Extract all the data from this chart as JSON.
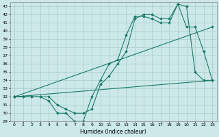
{
  "xlabel": "Humidex (Indice chaleur)",
  "background_color": "#cce8e8",
  "grid_color": "#aacccc",
  "line_color": "#1a7a6a",
  "xlim": [
    -0.5,
    23.5
  ],
  "ylim": [
    29,
    43.5
  ],
  "xticks": [
    0,
    1,
    2,
    3,
    4,
    5,
    6,
    7,
    8,
    9,
    10,
    11,
    12,
    13,
    14,
    15,
    16,
    17,
    18,
    19,
    20,
    21,
    22,
    23
  ],
  "yticks": [
    29,
    30,
    31,
    32,
    33,
    34,
    35,
    36,
    37,
    38,
    39,
    40,
    41,
    42,
    43
  ],
  "series": [
    {
      "x": [
        0,
        1,
        2,
        3,
        4,
        5,
        6,
        7,
        8,
        9,
        10,
        11,
        12,
        13,
        14,
        15,
        16,
        17,
        18,
        19,
        20,
        21,
        22,
        23
      ],
      "y": [
        32,
        32,
        32,
        32,
        31.5,
        30.0,
        30.0,
        29.0,
        29.0,
        32.0,
        34.0,
        36.0,
        36.5,
        39.5,
        41.8,
        41.8,
        41.5,
        41.0,
        41.0,
        43.3,
        43.0,
        35.0,
        34.0,
        34.0
      ]
    },
    {
      "x": [
        0,
        1,
        2,
        3,
        4,
        5,
        6,
        7,
        8,
        9,
        10,
        11,
        12,
        13,
        14,
        15,
        16,
        17,
        18,
        19,
        20,
        21,
        22,
        23
      ],
      "y": [
        32,
        32,
        32,
        32,
        32.0,
        31.0,
        30.5,
        30.0,
        30.0,
        30.5,
        33.5,
        34.5,
        36.0,
        37.5,
        41.5,
        42.0,
        42.0,
        41.5,
        41.5,
        43.3,
        40.5,
        40.5,
        37.5,
        34.0
      ]
    },
    {
      "x": [
        0,
        23
      ],
      "y": [
        32,
        40.5
      ]
    },
    {
      "x": [
        0,
        23
      ],
      "y": [
        32,
        34.0
      ]
    }
  ]
}
